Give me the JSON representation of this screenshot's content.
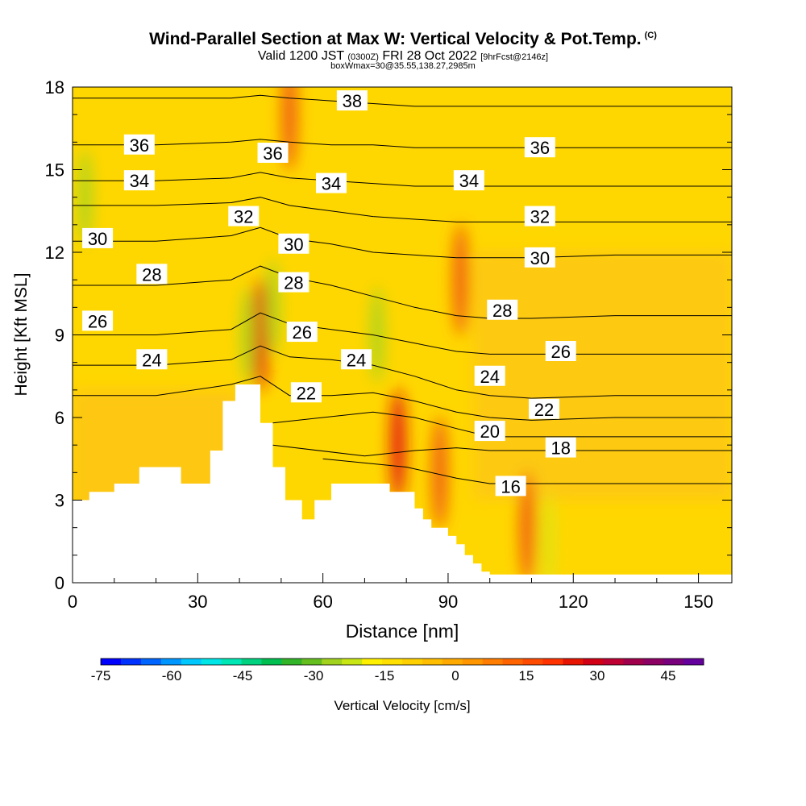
{
  "title": {
    "main": "Wind-Parallel Section at Max W: Vertical Velocity & Pot.Temp.",
    "copyright": "(C)",
    "valid_prefix": "Valid 1200 JST",
    "valid_utc": "(0300Z)",
    "valid_date": "FRI 28 Oct 2022",
    "forecast": "[9hrFcst@2146z]",
    "box_info": "boxWmax=30@35.55,138.27,2985m"
  },
  "colors": {
    "ridge_red": "#e31a10",
    "orange": "#f7a21a",
    "light_orange": "#fbbd1e",
    "yellow": "#ffd700",
    "bright_yellow": "#fff200",
    "green": "#a9d41c",
    "terrain": "#ffffff"
  },
  "chart_data": {
    "type": "heatmap",
    "xlabel": "Distance [nm]",
    "ylabel": "Height [Kft MSL]",
    "xlim": [
      0,
      158
    ],
    "ylim": [
      0,
      18
    ],
    "x_ticks": [
      "0",
      "30",
      "60",
      "90",
      "120",
      "150"
    ],
    "y_ticks": [
      "0",
      "3",
      "6",
      "9",
      "12",
      "15",
      "18"
    ],
    "colorbar": {
      "label": "Vertical Velocity [cm/s]",
      "tick_labels": [
        "-75",
        "-60",
        "-45",
        "-30",
        "-15",
        "0",
        "15",
        "30",
        "45"
      ],
      "range": [
        -75,
        52.5
      ],
      "colors": [
        "#0000ff",
        "#0032ff",
        "#0064ff",
        "#0096ff",
        "#00c8ff",
        "#00e6e6",
        "#00e6b4",
        "#00d280",
        "#00be50",
        "#32b428",
        "#64be1e",
        "#a0d21e",
        "#c8e614",
        "#fff000",
        "#ffe000",
        "#ffd000",
        "#ffbe00",
        "#ffaa00",
        "#ff9600",
        "#ff7d00",
        "#ff6400",
        "#ff4b00",
        "#ff3200",
        "#e61400",
        "#d20014",
        "#be0032",
        "#a0004b",
        "#8c0064",
        "#78007d",
        "#64009b"
      ]
    },
    "terrain": {
      "x": [
        0,
        0,
        4,
        4,
        10,
        10,
        16,
        16,
        26,
        26,
        33,
        33,
        36,
        36,
        39,
        39,
        45,
        45,
        48,
        48,
        51,
        51,
        55,
        55,
        58,
        58,
        62,
        62,
        76,
        76,
        82,
        82,
        84,
        84,
        86,
        86,
        90,
        90,
        92,
        92,
        94,
        94,
        96,
        96,
        98,
        98,
        100,
        100,
        102,
        102,
        158,
        158
      ],
      "y": [
        0,
        3,
        3,
        3.3,
        3.3,
        3.6,
        3.6,
        4.2,
        4.2,
        3.6,
        3.6,
        4.8,
        4.8,
        6.6,
        6.6,
        7.2,
        7.2,
        5.8,
        5.8,
        4.2,
        4.2,
        3.0,
        3.0,
        2.3,
        2.3,
        3.0,
        3.0,
        3.6,
        3.6,
        3.3,
        3.3,
        2.7,
        2.7,
        2.3,
        2.3,
        2.0,
        2.0,
        1.7,
        1.7,
        1.4,
        1.4,
        1.0,
        1.0,
        0.7,
        0.7,
        0.4,
        0.4,
        0.3,
        0.3,
        0.3,
        0.3,
        0
      ]
    },
    "updrafts": [
      {
        "x": 45,
        "y": 9,
        "value": 35
      },
      {
        "x": 52,
        "y": 17,
        "value": 28
      },
      {
        "x": 78,
        "y": 5,
        "value": 30
      },
      {
        "x": 88,
        "y": 4,
        "value": 22
      },
      {
        "x": 93,
        "y": 11,
        "value": 20
      },
      {
        "x": 109,
        "y": 2,
        "value": 25
      }
    ],
    "downdrafts": [
      {
        "x": 3,
        "y": 14,
        "value": -20
      },
      {
        "x": 42,
        "y": 9,
        "value": -22
      },
      {
        "x": 48,
        "y": 10,
        "value": -18
      },
      {
        "x": 73,
        "y": 9,
        "value": -18
      },
      {
        "x": 114,
        "y": 1.5,
        "value": -15
      }
    ],
    "isentropes": [
      {
        "label": "16",
        "x": [
          60,
          80,
          92,
          100,
          110,
          130,
          158
        ],
        "y": [
          4.5,
          4.2,
          3.8,
          3.6,
          3.6,
          3.6,
          3.6
        ]
      },
      {
        "label": "18",
        "x": [
          48,
          70,
          82,
          92,
          100,
          110,
          130,
          158
        ],
        "y": [
          5.0,
          4.6,
          4.8,
          4.9,
          4.8,
          4.8,
          4.8,
          4.8
        ]
      },
      {
        "label": "20",
        "x": [
          48,
          60,
          72,
          82,
          92,
          100,
          110,
          130,
          158
        ],
        "y": [
          5.8,
          6.0,
          6.2,
          6.0,
          5.6,
          5.3,
          5.3,
          5.3,
          5.3
        ]
      },
      {
        "label": "22",
        "x": [
          0,
          20,
          38,
          45,
          52,
          62,
          72,
          82,
          92,
          100,
          110,
          130,
          158
        ],
        "y": [
          6.8,
          6.8,
          7.2,
          7.5,
          6.8,
          6.8,
          6.9,
          6.6,
          6.2,
          6.0,
          5.9,
          6.0,
          6.0
        ]
      },
      {
        "label": "24",
        "x": [
          0,
          20,
          38,
          45,
          52,
          62,
          72,
          82,
          92,
          100,
          110,
          130,
          158
        ],
        "y": [
          7.9,
          7.9,
          8.1,
          8.6,
          8.2,
          8.1,
          7.9,
          7.5,
          7.0,
          6.8,
          6.7,
          6.8,
          6.8
        ]
      },
      {
        "label": "26",
        "x": [
          0,
          20,
          38,
          45,
          52,
          62,
          72,
          82,
          92,
          100,
          110,
          130,
          158
        ],
        "y": [
          9.0,
          9.0,
          9.2,
          9.8,
          9.4,
          9.2,
          9.0,
          8.7,
          8.4,
          8.3,
          8.3,
          8.3,
          8.3
        ]
      },
      {
        "label": "28",
        "x": [
          0,
          20,
          38,
          45,
          52,
          62,
          72,
          82,
          92,
          100,
          110,
          130,
          158
        ],
        "y": [
          10.8,
          10.8,
          11.0,
          11.5,
          11.1,
          10.8,
          10.4,
          10.0,
          9.7,
          9.6,
          9.6,
          9.7,
          9.7
        ]
      },
      {
        "label": "30",
        "x": [
          0,
          20,
          38,
          45,
          52,
          62,
          72,
          82,
          92,
          100,
          110,
          130,
          158
        ],
        "y": [
          12.4,
          12.4,
          12.6,
          12.9,
          12.5,
          12.3,
          12.0,
          11.9,
          11.8,
          11.8,
          11.8,
          11.9,
          11.9
        ]
      },
      {
        "label": "32",
        "x": [
          0,
          20,
          38,
          45,
          52,
          62,
          72,
          82,
          92,
          100,
          110,
          130,
          158
        ],
        "y": [
          13.7,
          13.7,
          13.8,
          14.0,
          13.7,
          13.5,
          13.3,
          13.2,
          13.1,
          13.1,
          13.1,
          13.1,
          13.1
        ]
      },
      {
        "label": "34",
        "x": [
          0,
          20,
          38,
          45,
          52,
          62,
          72,
          82,
          92,
          100,
          110,
          130,
          158
        ],
        "y": [
          14.6,
          14.6,
          14.7,
          14.9,
          14.7,
          14.6,
          14.5,
          14.4,
          14.4,
          14.4,
          14.4,
          14.4,
          14.4
        ]
      },
      {
        "label": "36",
        "x": [
          0,
          20,
          38,
          45,
          52,
          62,
          72,
          82,
          92,
          100,
          110,
          130,
          158
        ],
        "y": [
          15.9,
          15.9,
          16.0,
          16.1,
          16.0,
          15.9,
          15.9,
          15.8,
          15.8,
          15.8,
          15.8,
          15.8,
          15.8
        ]
      },
      {
        "label": "38",
        "x": [
          0,
          20,
          38,
          45,
          52,
          62,
          72,
          82,
          92,
          100,
          110,
          130,
          158
        ],
        "y": [
          17.6,
          17.6,
          17.6,
          17.7,
          17.6,
          17.5,
          17.4,
          17.3,
          17.3,
          17.3,
          17.3,
          17.3,
          17.3
        ]
      }
    ],
    "isentrope_labels": [
      {
        "text": "36",
        "x": 16,
        "y": 15.9
      },
      {
        "text": "34",
        "x": 16,
        "y": 14.6
      },
      {
        "text": "30",
        "x": 6,
        "y": 12.5
      },
      {
        "text": "28",
        "x": 19,
        "y": 11.2
      },
      {
        "text": "26",
        "x": 6,
        "y": 9.5
      },
      {
        "text": "24",
        "x": 19,
        "y": 8.1
      },
      {
        "text": "32",
        "x": 41,
        "y": 13.3
      },
      {
        "text": "36",
        "x": 48,
        "y": 15.6
      },
      {
        "text": "38",
        "x": 67,
        "y": 17.5
      },
      {
        "text": "34",
        "x": 62,
        "y": 14.5
      },
      {
        "text": "30",
        "x": 53,
        "y": 12.3
      },
      {
        "text": "28",
        "x": 53,
        "y": 10.9
      },
      {
        "text": "26",
        "x": 55,
        "y": 9.1
      },
      {
        "text": "24",
        "x": 68,
        "y": 8.1
      },
      {
        "text": "22",
        "x": 56,
        "y": 6.9
      },
      {
        "text": "34",
        "x": 95,
        "y": 14.6
      },
      {
        "text": "36",
        "x": 112,
        "y": 15.8
      },
      {
        "text": "32",
        "x": 112,
        "y": 13.3
      },
      {
        "text": "30",
        "x": 112,
        "y": 11.8
      },
      {
        "text": "28",
        "x": 103,
        "y": 9.9
      },
      {
        "text": "26",
        "x": 117,
        "y": 8.4
      },
      {
        "text": "24",
        "x": 100,
        "y": 7.5
      },
      {
        "text": "22",
        "x": 113,
        "y": 6.3
      },
      {
        "text": "20",
        "x": 100,
        "y": 5.5
      },
      {
        "text": "18",
        "x": 117,
        "y": 4.9
      },
      {
        "text": "16",
        "x": 105,
        "y": 3.5
      }
    ]
  }
}
